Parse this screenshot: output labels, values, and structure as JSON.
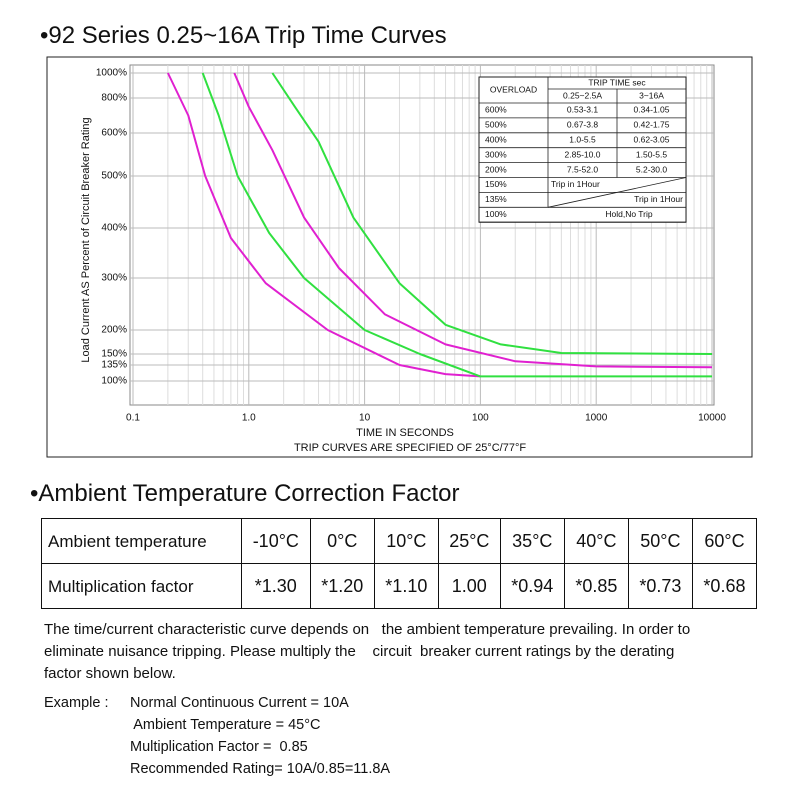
{
  "heading1": "•92 Series 0.25~16A Trip Time Curves",
  "chart_data": {
    "type": "line",
    "y_label": "Load Current AS Percent of Circuit Breaker Rating",
    "x_label": "TIME IN SECONDS",
    "note": "TRIP CURVES ARE SPECIFIED OF 25°C/77°F",
    "log_x": true,
    "grid": true,
    "xlim": [
      0.1,
      10000
    ],
    "xticks": [
      {
        "value": 0.1,
        "label": "0.1"
      },
      {
        "value": 1,
        "label": "1.0"
      },
      10,
      100,
      1000,
      10000
    ],
    "ylim": [
      100,
      1000
    ],
    "yticks": [
      {
        "value": 100,
        "label": "100%"
      },
      {
        "value": 135,
        "label": "135%"
      },
      {
        "value": 150,
        "label": "150%"
      },
      {
        "value": 200,
        "label": "200%"
      },
      {
        "value": 300,
        "label": "300%"
      },
      {
        "value": 400,
        "label": "400%"
      },
      {
        "value": 500,
        "label": "500%"
      },
      {
        "value": 600,
        "label": "600%"
      },
      {
        "value": 800,
        "label": "800%"
      },
      {
        "value": 1000,
        "label": "1000%"
      }
    ],
    "series": [
      {
        "color": "#e020d0",
        "x": [
          0.2,
          0.3,
          0.42,
          0.7,
          1.4,
          4.8,
          20,
          50,
          100
        ],
        "values": [
          1000,
          700,
          500,
          380,
          290,
          200,
          135,
          115,
          110
        ]
      },
      {
        "color": "#30e040",
        "x": [
          0.4,
          0.55,
          0.8,
          1.5,
          3,
          10,
          30,
          100,
          10000
        ],
        "values": [
          1000,
          700,
          500,
          390,
          300,
          200,
          150,
          110,
          110
        ]
      },
      {
        "color": "#e020d0",
        "x": [
          0.75,
          1,
          1.6,
          3,
          6,
          15,
          50,
          200,
          1000,
          10000
        ],
        "values": [
          1000,
          750,
          560,
          420,
          320,
          230,
          170,
          140,
          132,
          130
        ]
      },
      {
        "color": "#30e040",
        "x": [
          1.6,
          2.5,
          4,
          8,
          20,
          50,
          150,
          500,
          10000
        ],
        "values": [
          1000,
          750,
          580,
          420,
          290,
          210,
          170,
          152,
          150
        ]
      }
    ]
  },
  "trip_table": {
    "overload_header": "OVERLOAD",
    "time_header": "TRIP TIME sec",
    "columns": [
      "0.25~2.5A",
      "3~16A"
    ],
    "rows": [
      [
        "600%",
        "0.53-3.1",
        "0.34-1.05"
      ],
      [
        "500%",
        "0.67-3.8",
        "0.42-1.75"
      ],
      [
        "400%",
        "1.0-5.5",
        "0.62-3.05"
      ],
      [
        "300%",
        "2.85-10.0",
        "1.50-5.5"
      ],
      [
        "200%",
        "7.5-52.0",
        "5.2-30.0"
      ],
      [
        "150%",
        "Trip in 1Hour"
      ],
      [
        "135%",
        "Trip in 1Hour"
      ],
      [
        "100%",
        "Hold,No Trip"
      ]
    ]
  },
  "heading2": "•Ambient Temperature Correction Factor",
  "temp_table": {
    "rows": [
      [
        "Ambient temperature",
        "-10°C",
        "0°C",
        "10°C",
        "25°C",
        "35°C",
        "40°C",
        "50°C",
        "60°C"
      ],
      [
        "Multiplication factor",
        "*1.30",
        "*1.20",
        "*1.10",
        "1.00",
        "*0.94",
        "*0.85",
        "*0.73",
        "*0.68"
      ]
    ]
  },
  "paragraph": [
    "The time/current characteristic curve depends on   the ambient temperature prevailing. In order to",
    "eliminate nuisance tripping. Please multiply the    circuit  breaker current ratings by the derating",
    "factor shown below."
  ],
  "example": {
    "label": "Example :",
    "lines": [
      "Normal Continuous Current = 10A",
      " Ambient Temperature = 45°C",
      "Multiplication Factor =  0.85",
      "Recommended Rating= 10A/0.85=11.8A"
    ]
  }
}
